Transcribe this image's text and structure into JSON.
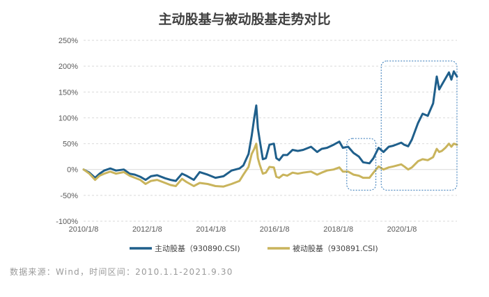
{
  "chart_data": {
    "type": "line",
    "title": "主动股基与被动股基走势对比",
    "y_ticks": [
      "250%",
      "200%",
      "150%",
      "100%",
      "50%",
      "0%",
      "-50%",
      "-100%"
    ],
    "ylim": [
      -100,
      250
    ],
    "x_ticks": [
      "2010/1/8",
      "2012/1/8",
      "2014/1/8",
      "2016/1/8",
      "2018/1/8",
      "2020/1/8"
    ],
    "xlim": [
      "2010-01-08",
      "2021-09-30"
    ],
    "grid": "horizontal-dashed",
    "legend": "bottom",
    "series": [
      {
        "name": "主动股基（930890.CSI)",
        "color": "#1f5f8b",
        "points": [
          [
            "2010-01-08",
            0
          ],
          [
            "2010-03-15",
            -6
          ],
          [
            "2010-05-20",
            -16
          ],
          [
            "2010-07-10",
            -8
          ],
          [
            "2010-09-01",
            -2
          ],
          [
            "2010-11-10",
            2
          ],
          [
            "2011-01-15",
            -2
          ],
          [
            "2011-04-15",
            0
          ],
          [
            "2011-06-20",
            -8
          ],
          [
            "2011-08-20",
            -10
          ],
          [
            "2011-10-20",
            -14
          ],
          [
            "2011-12-20",
            -20
          ],
          [
            "2012-02-20",
            -13
          ],
          [
            "2012-05-01",
            -11
          ],
          [
            "2012-08-01",
            -17
          ],
          [
            "2012-10-01",
            -20
          ],
          [
            "2012-12-01",
            -22
          ],
          [
            "2013-02-10",
            -8
          ],
          [
            "2013-04-01",
            -12
          ],
          [
            "2013-06-25",
            -20
          ],
          [
            "2013-09-01",
            -5
          ],
          [
            "2013-12-01",
            -10
          ],
          [
            "2014-03-01",
            -16
          ],
          [
            "2014-06-01",
            -13
          ],
          [
            "2014-09-01",
            -2
          ],
          [
            "2014-12-01",
            2
          ],
          [
            "2015-01-15",
            8
          ],
          [
            "2015-03-15",
            30
          ],
          [
            "2015-04-20",
            65
          ],
          [
            "2015-05-20",
            100
          ],
          [
            "2015-06-12",
            124
          ],
          [
            "2015-06-30",
            80
          ],
          [
            "2015-07-20",
            58
          ],
          [
            "2015-08-26",
            20
          ],
          [
            "2015-09-30",
            22
          ],
          [
            "2015-11-10",
            48
          ],
          [
            "2015-12-31",
            50
          ],
          [
            "2016-01-28",
            22
          ],
          [
            "2016-03-01",
            18
          ],
          [
            "2016-04-15",
            28
          ],
          [
            "2016-06-01",
            28
          ],
          [
            "2016-08-01",
            38
          ],
          [
            "2016-10-01",
            36
          ],
          [
            "2016-12-01",
            38
          ],
          [
            "2017-03-01",
            44
          ],
          [
            "2017-05-10",
            34
          ],
          [
            "2017-07-01",
            40
          ],
          [
            "2017-09-01",
            42
          ],
          [
            "2017-11-15",
            48
          ],
          [
            "2018-01-20",
            54
          ],
          [
            "2018-03-01",
            42
          ],
          [
            "2018-05-01",
            44
          ],
          [
            "2018-07-01",
            32
          ],
          [
            "2018-09-01",
            25
          ],
          [
            "2018-10-20",
            14
          ],
          [
            "2018-12-31",
            12
          ],
          [
            "2019-02-15",
            22
          ],
          [
            "2019-04-15",
            42
          ],
          [
            "2019-06-10",
            34
          ],
          [
            "2019-08-10",
            44
          ],
          [
            "2019-10-01",
            46
          ],
          [
            "2019-12-31",
            52
          ],
          [
            "2020-02-03",
            48
          ],
          [
            "2020-03-20",
            45
          ],
          [
            "2020-05-01",
            58
          ],
          [
            "2020-07-10",
            90
          ],
          [
            "2020-09-01",
            108
          ],
          [
            "2020-10-30",
            104
          ],
          [
            "2020-12-31",
            128
          ],
          [
            "2021-02-10",
            180
          ],
          [
            "2021-03-10",
            155
          ],
          [
            "2021-04-10",
            164
          ],
          [
            "2021-05-20",
            176
          ],
          [
            "2021-06-30",
            188
          ],
          [
            "2021-07-28",
            174
          ],
          [
            "2021-08-25",
            190
          ],
          [
            "2021-09-30",
            180
          ]
        ]
      },
      {
        "name": "被动股基（930891.CSI)",
        "color": "#c9b45c",
        "points": [
          [
            "2010-01-08",
            0
          ],
          [
            "2010-03-15",
            -8
          ],
          [
            "2010-05-20",
            -20
          ],
          [
            "2010-07-10",
            -12
          ],
          [
            "2010-09-01",
            -8
          ],
          [
            "2010-11-10",
            -4
          ],
          [
            "2011-01-15",
            -8
          ],
          [
            "2011-04-15",
            -5
          ],
          [
            "2011-06-20",
            -12
          ],
          [
            "2011-08-20",
            -16
          ],
          [
            "2011-10-20",
            -20
          ],
          [
            "2011-12-20",
            -28
          ],
          [
            "2012-02-20",
            -22
          ],
          [
            "2012-05-01",
            -20
          ],
          [
            "2012-08-01",
            -26
          ],
          [
            "2012-10-01",
            -30
          ],
          [
            "2012-12-01",
            -32
          ],
          [
            "2013-02-10",
            -18
          ],
          [
            "2013-04-01",
            -24
          ],
          [
            "2013-06-25",
            -32
          ],
          [
            "2013-09-01",
            -26
          ],
          [
            "2013-12-01",
            -28
          ],
          [
            "2014-03-01",
            -32
          ],
          [
            "2014-06-01",
            -33
          ],
          [
            "2014-09-01",
            -28
          ],
          [
            "2014-12-01",
            -22
          ],
          [
            "2015-01-15",
            -10
          ],
          [
            "2015-03-15",
            5
          ],
          [
            "2015-04-20",
            30
          ],
          [
            "2015-05-20",
            40
          ],
          [
            "2015-06-12",
            50
          ],
          [
            "2015-06-30",
            22
          ],
          [
            "2015-07-20",
            10
          ],
          [
            "2015-08-26",
            -8
          ],
          [
            "2015-09-30",
            -6
          ],
          [
            "2015-11-10",
            5
          ],
          [
            "2015-12-31",
            4
          ],
          [
            "2016-01-28",
            -14
          ],
          [
            "2016-03-01",
            -16
          ],
          [
            "2016-04-15",
            -10
          ],
          [
            "2016-06-01",
            -12
          ],
          [
            "2016-08-01",
            -6
          ],
          [
            "2016-10-01",
            -8
          ],
          [
            "2016-12-01",
            -6
          ],
          [
            "2017-03-01",
            -4
          ],
          [
            "2017-05-10",
            -10
          ],
          [
            "2017-07-01",
            -6
          ],
          [
            "2017-09-01",
            -2
          ],
          [
            "2017-11-15",
            0
          ],
          [
            "2018-01-20",
            4
          ],
          [
            "2018-03-01",
            -4
          ],
          [
            "2018-05-01",
            -4
          ],
          [
            "2018-07-01",
            -10
          ],
          [
            "2018-09-01",
            -12
          ],
          [
            "2018-10-20",
            -16
          ],
          [
            "2018-12-31",
            -16
          ],
          [
            "2019-02-15",
            -6
          ],
          [
            "2019-04-15",
            6
          ],
          [
            "2019-06-10",
            0
          ],
          [
            "2019-08-10",
            4
          ],
          [
            "2019-10-01",
            6
          ],
          [
            "2019-12-31",
            10
          ],
          [
            "2020-02-03",
            6
          ],
          [
            "2020-03-20",
            0
          ],
          [
            "2020-05-01",
            4
          ],
          [
            "2020-07-10",
            16
          ],
          [
            "2020-09-01",
            20
          ],
          [
            "2020-10-30",
            18
          ],
          [
            "2020-12-31",
            24
          ],
          [
            "2021-02-10",
            40
          ],
          [
            "2021-03-10",
            34
          ],
          [
            "2021-04-10",
            36
          ],
          [
            "2021-05-20",
            42
          ],
          [
            "2021-06-30",
            50
          ],
          [
            "2021-07-28",
            44
          ],
          [
            "2021-08-25",
            50
          ],
          [
            "2021-09-30",
            48
          ]
        ]
      }
    ],
    "highlight_boxes": [
      {
        "x_from": "2018-04-15",
        "x_to": "2019-03-15",
        "y_from": -40,
        "y_to": 60
      },
      {
        "x_from": "2019-05-15",
        "x_to": "2021-09-30",
        "y_from": -40,
        "y_to": 210
      }
    ]
  },
  "source_note": "数据来源：Wind，时间区间：2010.1.1-2021.9.30"
}
